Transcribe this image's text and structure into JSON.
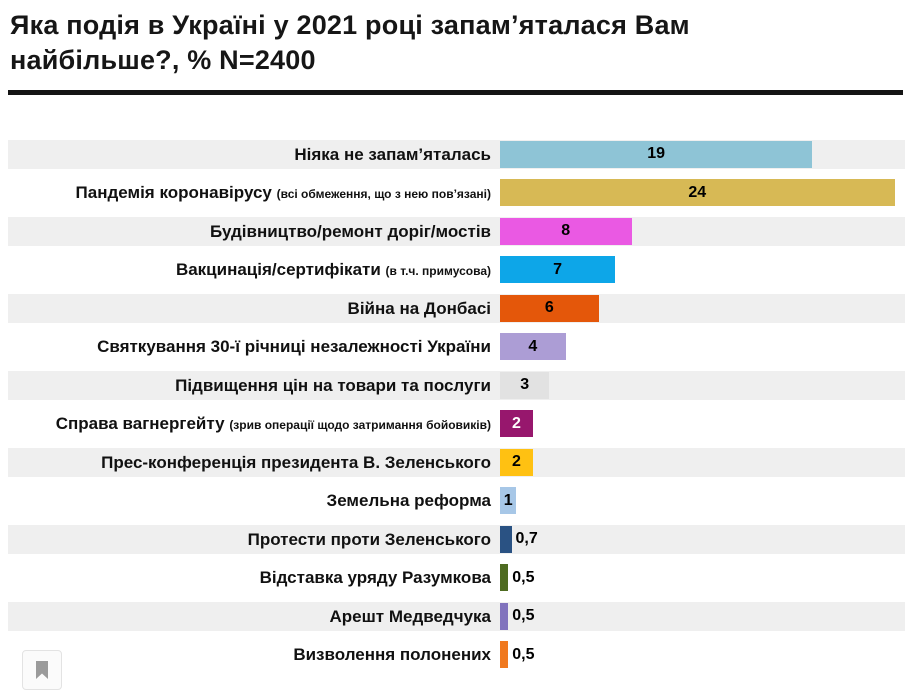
{
  "title": {
    "line1": "Яка подія в Україні у 2021 році запам’яталася Вам",
    "line2": "найбільше?, % N=2400"
  },
  "chart_data": {
    "type": "bar",
    "orientation": "horizontal",
    "title": "Яка подія в Україні у 2021 році запам’яталася Вам найбільше?, % N=2400",
    "sample_note": "N=2400",
    "unit": "%",
    "xlim": [
      0,
      25
    ],
    "grid": false,
    "legend": false,
    "row_striping": "odd-rows-light-gray",
    "stripe_color": "#efefef",
    "rows": [
      {
        "label": "Ніяка не запам’яталась",
        "sublabel": "",
        "value": 19,
        "value_label": "19",
        "color": "#8ec4d6",
        "value_position": "inside",
        "value_color": "#000000"
      },
      {
        "label": "Пандемія коронавірусу",
        "sublabel": "(всі обмеження, що з нею пов’язані)",
        "value": 24,
        "value_label": "24",
        "color": "#d7b955",
        "value_position": "inside",
        "value_color": "#000000"
      },
      {
        "label": "Будівництво/ремонт доріг/мостів",
        "sublabel": "",
        "value": 8,
        "value_label": "8",
        "color": "#ea59e3",
        "value_position": "inside",
        "value_color": "#000000"
      },
      {
        "label": "Вакцинація/сертифікати",
        "sublabel": "(в т.ч. примусова)",
        "value": 7,
        "value_label": "7",
        "color": "#0da6e8",
        "value_position": "inside",
        "value_color": "#000000"
      },
      {
        "label": "Війна на Донбасі",
        "sublabel": "",
        "value": 6,
        "value_label": "6",
        "color": "#e4570a",
        "value_position": "inside",
        "value_color": "#000000"
      },
      {
        "label": "Святкування 30-ї річниці незалежності України",
        "sublabel": "",
        "value": 4,
        "value_label": "4",
        "color": "#ac9dd5",
        "value_position": "inside",
        "value_color": "#000000"
      },
      {
        "label": "Підвищення цін на товари та послуги",
        "sublabel": "",
        "value": 3,
        "value_label": "3",
        "color": "#e2e2e2",
        "value_position": "inside",
        "value_color": "#000000"
      },
      {
        "label": "Справа вагнергейту",
        "sublabel": "(зрив операції щодо затримання бойовиків)",
        "value": 2,
        "value_label": "2",
        "color": "#97176d",
        "value_position": "inside",
        "value_color": "#ffffff"
      },
      {
        "label": "Прес-конференція президента В. Зеленського",
        "sublabel": "",
        "value": 2,
        "value_label": "2",
        "color": "#ffc112",
        "value_position": "inside",
        "value_color": "#000000"
      },
      {
        "label": "Земельна реформа",
        "sublabel": "",
        "value": 1,
        "value_label": "1",
        "color": "#a7c7e7",
        "value_position": "inside",
        "value_color": "#000000"
      },
      {
        "label": "Протести проти Зеленського",
        "sublabel": "",
        "value": 0.7,
        "value_label": "0,7",
        "color": "#2a5283",
        "value_position": "outside",
        "value_color": "#000000"
      },
      {
        "label": "Відставка уряду Разумкова",
        "sublabel": "",
        "value": 0.5,
        "value_label": "0,5",
        "color": "#4e6b21",
        "value_position": "outside",
        "value_color": "#000000"
      },
      {
        "label": "Арешт Медведчука",
        "sublabel": "",
        "value": 0.5,
        "value_label": "0,5",
        "color": "#8173bd",
        "value_position": "outside",
        "value_color": "#000000"
      },
      {
        "label": "Визволення полонених",
        "sublabel": "",
        "value": 0.5,
        "value_label": "0,5",
        "color": "#f0791f",
        "value_position": "outside",
        "value_color": "#000000"
      }
    ]
  },
  "footer": {
    "icons": {
      "bookmark": "bookmark-icon"
    }
  }
}
